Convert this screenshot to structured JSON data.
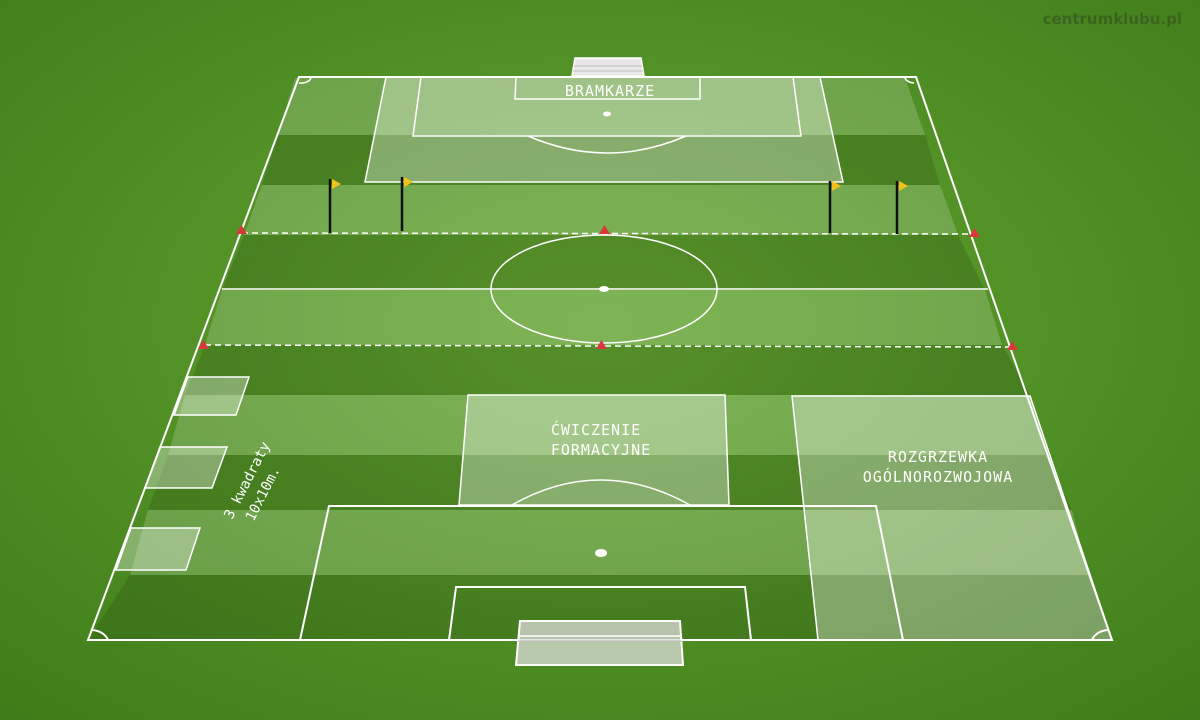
{
  "watermark": "centrumklubu.pl",
  "zones": {
    "goalkeepers": "BRAMKARZE",
    "formation_line1": "ĆWICZENIE",
    "formation_line2": "FORMACYJNE",
    "warmup_line1": "ROZGRZEWKA",
    "warmup_line2": "OGÓLNOROZWOJOWA"
  },
  "squares_note": {
    "line1": "3 kwadraty",
    "line2": "10x10m."
  },
  "colors": {
    "grass_dark": "#4a8a1f",
    "grass_light": "#5d9f2d",
    "line": "#ffffff",
    "cone": "#d9383a",
    "flag": "#f2c21a",
    "pole": "#111111"
  }
}
